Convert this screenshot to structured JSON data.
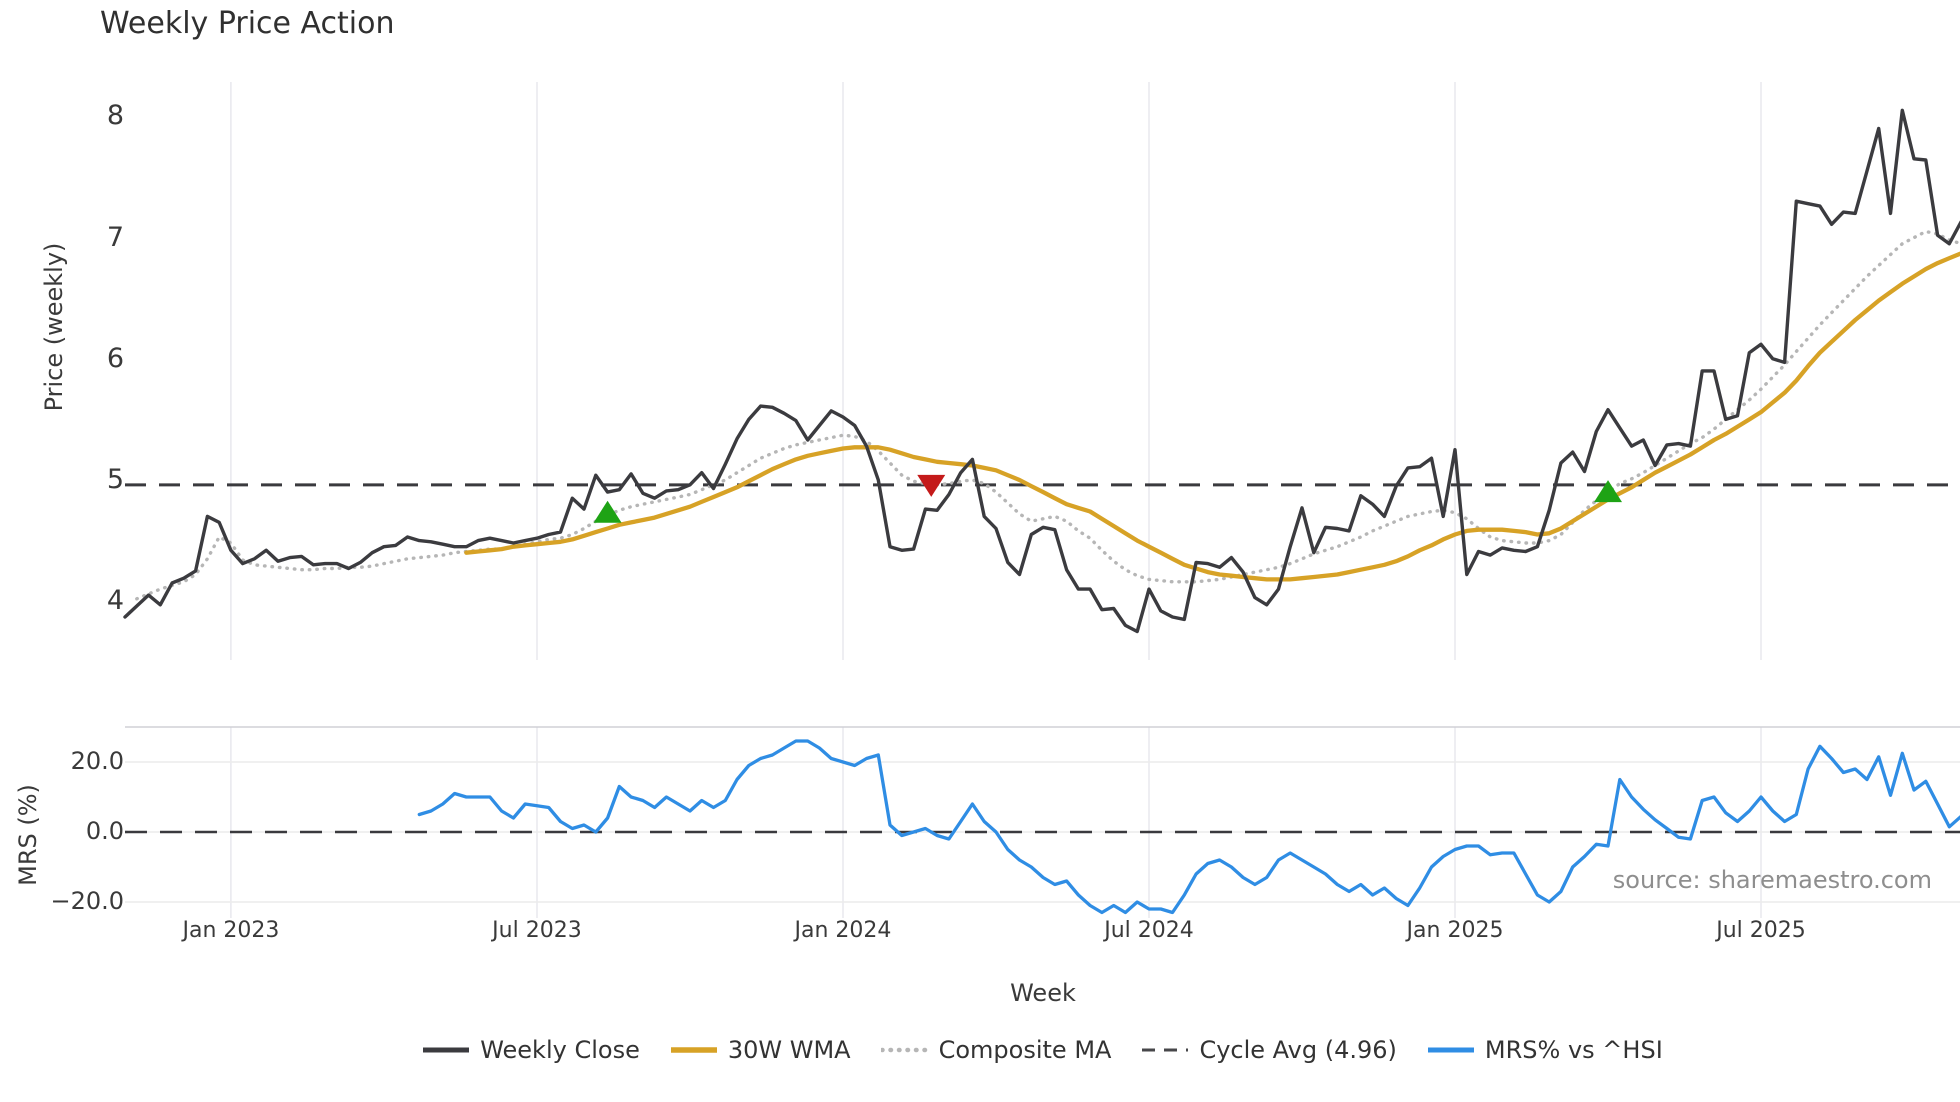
{
  "title": "Weekly Price Action",
  "source_note": "source: sharemaestro.com",
  "axes": {
    "price_axis_label": "Price (weekly)",
    "mrs_axis_label": "MRS (%)",
    "x_axis_label": "Week",
    "price_tick_labels": [
      "8",
      "7",
      "6",
      "5",
      "4"
    ],
    "mrs_tick_labels": [
      "20.0",
      "0.0",
      "−20.0"
    ],
    "x_tick_labels": [
      "Jan 2023",
      "Jul 2023",
      "Jan 2024",
      "Jul 2024",
      "Jan 2025",
      "Jul 2025"
    ]
  },
  "legend": [
    {
      "label": "Weekly Close",
      "style": "solid",
      "color": "#3b3b3f",
      "width": 5
    },
    {
      "label": "30W WMA",
      "style": "solid",
      "color": "#d7a226",
      "width": 5.5
    },
    {
      "label": "Composite MA",
      "style": "dotted",
      "color": "#b6b6b6",
      "width": 4.5
    },
    {
      "label": "Cycle Avg (4.96)",
      "style": "dashed",
      "color": "#47474a",
      "width": 3
    },
    {
      "label": "MRS% vs ^HSI",
      "style": "solid",
      "color": "#2f8de4",
      "width": 5
    }
  ],
  "colors": {
    "weekly_close": "#3b3b3f",
    "wma30": "#d7a226",
    "composite": "#b6b6b6",
    "cycle": "#3a3a3e",
    "mrs_line": "#2f8de4",
    "marker_up": "#1ea315",
    "marker_down": "#c41a1a",
    "grid": "#e9e9ef",
    "mrs_grid": "#ececec",
    "spine": "#d0d0d6"
  },
  "chart_data": {
    "type": "line",
    "x_unit": "week_index",
    "x_ticks": [
      {
        "label": "Jan 2023",
        "week": 9
      },
      {
        "label": "Jul 2023",
        "week": 35
      },
      {
        "label": "Jan 2024",
        "week": 61
      },
      {
        "label": "Jul 2024",
        "week": 87
      },
      {
        "label": "Jan 2025",
        "week": 113
      },
      {
        "label": "Jul 2025",
        "week": 139
      }
    ],
    "price_panel": {
      "ylim": [
        3.55,
        8.35
      ],
      "yticks": [
        8,
        7,
        6,
        5,
        4
      ],
      "cycle_avg": 4.96,
      "series": [
        {
          "name": "Weekly Close",
          "color": "#3b3b3f",
          "width": 3.4,
          "dash": null,
          "start_week": 0,
          "values": [
            3.87,
            3.96,
            4.05,
            3.97,
            4.15,
            4.19,
            4.25,
            4.7,
            4.65,
            4.42,
            4.31,
            4.35,
            4.42,
            4.33,
            4.36,
            4.37,
            4.3,
            4.31,
            4.31,
            4.27,
            4.32,
            4.4,
            4.45,
            4.46,
            4.53,
            4.5,
            4.49,
            4.47,
            4.45,
            4.45,
            4.5,
            4.52,
            4.5,
            4.48,
            4.5,
            4.52,
            4.55,
            4.57,
            4.85,
            4.76,
            5.04,
            4.9,
            4.92,
            5.05,
            4.89,
            4.85,
            4.91,
            4.92,
            4.96,
            5.06,
            4.93,
            5.13,
            5.34,
            5.5,
            5.61,
            5.6,
            5.55,
            5.49,
            5.33,
            5.45,
            5.57,
            5.52,
            5.45,
            5.28,
            5.0,
            4.45,
            4.42,
            4.43,
            4.76,
            4.75,
            4.88,
            5.06,
            5.17,
            4.7,
            4.6,
            4.32,
            4.22,
            4.55,
            4.61,
            4.59,
            4.26,
            4.1,
            4.1,
            3.93,
            3.94,
            3.8,
            3.75,
            4.1,
            3.92,
            3.87,
            3.85,
            4.32,
            4.31,
            4.28,
            4.36,
            4.24,
            4.03,
            3.97,
            4.1,
            4.45,
            4.77,
            4.4,
            4.61,
            4.6,
            4.58,
            4.87,
            4.8,
            4.7,
            4.95,
            5.1,
            5.11,
            5.18,
            4.7,
            5.25,
            4.22,
            4.41,
            4.38,
            4.44,
            4.42,
            4.41,
            4.45,
            4.75,
            5.14,
            5.23,
            5.07,
            5.4,
            5.58,
            5.43,
            5.28,
            5.33,
            5.12,
            5.29,
            5.3,
            5.28,
            5.9,
            5.9,
            5.5,
            5.53,
            6.05,
            6.12,
            6.0,
            5.97,
            7.3,
            7.28,
            7.26,
            7.11,
            7.21,
            7.2,
            7.55,
            7.9,
            7.2,
            8.05,
            7.65,
            7.64,
            7.02,
            6.95,
            7.13
          ]
        },
        {
          "name": "30W WMA",
          "color": "#d7a226",
          "width": 4.3,
          "dash": null,
          "start_week": 29,
          "values": [
            4.4,
            4.41,
            4.42,
            4.43,
            4.45,
            4.46,
            4.47,
            4.48,
            4.49,
            4.51,
            4.54,
            4.57,
            4.6,
            4.63,
            4.65,
            4.67,
            4.69,
            4.72,
            4.75,
            4.78,
            4.82,
            4.86,
            4.9,
            4.94,
            4.99,
            5.04,
            5.09,
            5.13,
            5.17,
            5.2,
            5.22,
            5.24,
            5.26,
            5.27,
            5.27,
            5.27,
            5.25,
            5.22,
            5.19,
            5.17,
            5.15,
            5.14,
            5.13,
            5.12,
            5.1,
            5.08,
            5.04,
            5.0,
            4.95,
            4.9,
            4.85,
            4.8,
            4.77,
            4.74,
            4.68,
            4.62,
            4.56,
            4.5,
            4.45,
            4.4,
            4.35,
            4.3,
            4.27,
            4.24,
            4.22,
            4.21,
            4.2,
            4.19,
            4.18,
            4.18,
            4.18,
            4.19,
            4.2,
            4.21,
            4.22,
            4.24,
            4.26,
            4.28,
            4.3,
            4.33,
            4.37,
            4.42,
            4.46,
            4.51,
            4.55,
            4.58,
            4.59,
            4.59,
            4.59,
            4.58,
            4.57,
            4.55,
            4.56,
            4.6,
            4.66,
            4.72,
            4.78,
            4.84,
            4.89,
            4.94,
            5.0,
            5.06,
            5.11,
            5.16,
            5.21,
            5.27,
            5.33,
            5.38,
            5.44,
            5.5,
            5.56,
            5.64,
            5.72,
            5.82,
            5.94,
            6.05,
            6.14,
            6.23,
            6.32,
            6.4,
            6.48,
            6.55,
            6.62,
            6.68,
            6.74,
            6.79,
            6.83,
            6.87
          ]
        },
        {
          "name": "Composite MA",
          "color": "#b6b6b6",
          "width": 3.4,
          "dash": "0.5 7",
          "start_week": 1,
          "values": [
            4.02,
            4.06,
            4.1,
            4.13,
            4.16,
            4.22,
            4.35,
            4.53,
            4.48,
            4.34,
            4.3,
            4.29,
            4.28,
            4.27,
            4.26,
            4.26,
            4.27,
            4.27,
            4.28,
            4.28,
            4.29,
            4.31,
            4.33,
            4.35,
            4.36,
            4.37,
            4.38,
            4.4,
            4.41,
            4.42,
            4.43,
            4.43,
            4.45,
            4.47,
            4.49,
            4.51,
            4.52,
            4.55,
            4.6,
            4.66,
            4.71,
            4.75,
            4.78,
            4.8,
            4.82,
            4.84,
            4.86,
            4.88,
            4.92,
            4.96,
            5.0,
            5.06,
            5.12,
            5.18,
            5.22,
            5.26,
            5.29,
            5.31,
            5.33,
            5.35,
            5.37,
            5.36,
            5.32,
            5.24,
            5.14,
            5.04,
            4.99,
            4.97,
            4.96,
            4.97,
            4.99,
            5.0,
            4.97,
            4.9,
            4.81,
            4.72,
            4.66,
            4.68,
            4.7,
            4.66,
            4.58,
            4.52,
            4.42,
            4.33,
            4.26,
            4.21,
            4.18,
            4.17,
            4.16,
            4.16,
            4.16,
            4.17,
            4.18,
            4.2,
            4.22,
            4.24,
            4.26,
            4.28,
            4.31,
            4.35,
            4.39,
            4.42,
            4.45,
            4.49,
            4.53,
            4.58,
            4.62,
            4.66,
            4.7,
            4.72,
            4.74,
            4.75,
            4.73,
            4.68,
            4.6,
            4.53,
            4.5,
            4.49,
            4.48,
            4.48,
            4.5,
            4.55,
            4.65,
            4.75,
            4.83,
            4.9,
            4.97,
            5.01,
            5.06,
            5.12,
            5.18,
            5.24,
            5.3,
            5.35,
            5.42,
            5.5,
            5.58,
            5.66,
            5.75,
            5.85,
            5.95,
            6.06,
            6.17,
            6.28,
            6.38,
            6.48,
            6.58,
            6.68,
            6.77,
            6.86,
            6.95,
            7.0,
            7.05,
            7.03,
            6.98,
            6.95
          ]
        }
      ],
      "markers": [
        {
          "shape": "triangle-up",
          "color": "green",
          "week": 41,
          "price": 4.73
        },
        {
          "shape": "triangle-down",
          "color": "red",
          "week": 68.5,
          "price": 4.96
        },
        {
          "shape": "triangle-up",
          "color": "green",
          "week": 126,
          "price": 4.9
        }
      ]
    },
    "mrs_panel": {
      "ylim": [
        -27,
        30
      ],
      "yticks": [
        20,
        0,
        -20
      ],
      "zero_dashed_line": 0,
      "series": [
        {
          "name": "MRS% vs ^HSI",
          "color": "#2f8de4",
          "width": 3.3,
          "dash": null,
          "start_week": 25,
          "values": [
            5,
            6,
            8,
            11,
            10,
            10,
            10,
            6,
            4,
            8,
            7.5,
            7,
            3,
            1,
            2,
            0,
            4,
            13,
            10,
            9,
            7,
            10,
            8,
            6,
            9,
            7,
            9,
            15,
            19,
            21,
            22,
            24,
            26,
            26,
            24,
            21,
            20,
            19,
            21,
            22,
            2,
            -1,
            0,
            1,
            -1,
            -2,
            3,
            8,
            3,
            0,
            -5,
            -8,
            -10,
            -13,
            -15,
            -14,
            -18,
            -21,
            -23,
            -21,
            -23,
            -20,
            -22,
            -22,
            -23,
            -18,
            -12,
            -9,
            -8,
            -10,
            -13,
            -15,
            -13,
            -8,
            -6,
            -8,
            -10,
            -12,
            -15,
            -17,
            -15,
            -18,
            -16,
            -19,
            -21,
            -16,
            -10,
            -7,
            -5,
            -4,
            -4,
            -6.5,
            -6,
            -6,
            -12,
            -18,
            -20,
            -17,
            -10,
            -7,
            -3.5,
            -4,
            15,
            10,
            6.5,
            3.5,
            1,
            -1.5,
            -2,
            9,
            10,
            5.5,
            3,
            6,
            10,
            6,
            3,
            5,
            18,
            24.5,
            21,
            17,
            18,
            15,
            21.5,
            10.5,
            22.5,
            12,
            14.5,
            8,
            1.5,
            4.5
          ]
        }
      ]
    }
  }
}
